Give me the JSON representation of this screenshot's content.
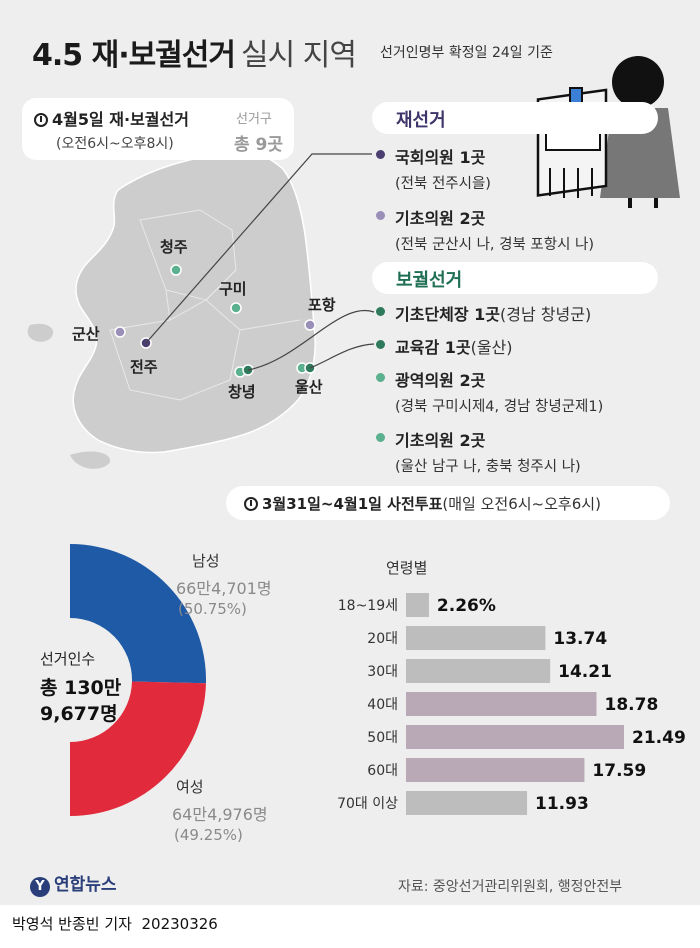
{
  "title": {
    "main": "4.5 재·보궐선거",
    "sub": "실시 지역"
  },
  "basis_note": "선거인명부 확정일 24일 기준",
  "election_day": {
    "date_label": "4월5일 재·보궐선거",
    "hours": "(오전6시~오후8시)",
    "districts_label": "선거구",
    "districts_value": "총 9곳"
  },
  "cities": [
    {
      "name": "청주",
      "kind": "by_election"
    },
    {
      "name": "구미",
      "kind": "by_election"
    },
    {
      "name": "포항",
      "kind": "re_election"
    },
    {
      "name": "군산",
      "kind": "re_election"
    },
    {
      "name": "전주",
      "kind": "re_election_main"
    },
    {
      "name": "창녕",
      "kind": "by_election"
    },
    {
      "name": "울산",
      "kind": "by_election"
    }
  ],
  "re_election": {
    "heading": "재선거",
    "items": [
      {
        "title": "국회의원 1곳",
        "detail": "(전북 전주시을)"
      },
      {
        "title": "기초의원 2곳",
        "detail": "(전북 군산시 나, 경북 포항시 나)"
      }
    ]
  },
  "by_election": {
    "heading": "보궐선거",
    "items": [
      {
        "title": "기초단체장 1곳",
        "extra": "(경남 창녕군)",
        "detail": ""
      },
      {
        "title": "교육감 1곳",
        "extra": "(울산)",
        "detail": ""
      },
      {
        "title": "광역의원 2곳",
        "extra": "",
        "detail": "(경북 구미시제4, 경남 창녕군제1)"
      },
      {
        "title": "기초의원 2곳",
        "extra": "",
        "detail": "(울산 남구 나, 충북 청주시 나)"
      }
    ]
  },
  "early_voting": {
    "dates": "3월31일~4월1일 사전투표",
    "hours": "(매일 오전6시~오후6시)"
  },
  "colors": {
    "male": "#1f5aa6",
    "female": "#e12b3c",
    "re_dot": "#4b3f72",
    "re_dot_light": "#9a8fb8",
    "by_dot": "#2f7a5b",
    "by_dot_light": "#5bb08f",
    "map": "#cdcdcd",
    "bar_light": "#bdbdbd",
    "bar_dark": "#b9a9b6"
  },
  "chart_data": [
    {
      "type": "pie",
      "title": "선거인수",
      "total_label": "총 130만",
      "total_label2": "9,677명",
      "slices": [
        {
          "name": "남성",
          "value_label": "66만4,701명",
          "pct_label": "(50.75%)",
          "value": 664701,
          "percent": 50.75
        },
        {
          "name": "여성",
          "value_label": "64만4,976명",
          "pct_label": "(49.25%)",
          "value": 644976,
          "percent": 49.25
        }
      ]
    },
    {
      "type": "bar",
      "title": "연령별",
      "orientation": "horizontal",
      "categories": [
        "18~19세",
        "20대",
        "30대",
        "40대",
        "50대",
        "60대",
        "70대 이상"
      ],
      "values": [
        2.26,
        13.74,
        14.21,
        18.78,
        21.49,
        17.59,
        11.93
      ],
      "labels": [
        "2.26%",
        "13.74",
        "14.21",
        "18.78",
        "21.49",
        "17.59",
        "11.93"
      ],
      "xlim": [
        0,
        21.49
      ],
      "highlighted": [
        false,
        false,
        false,
        true,
        true,
        true,
        false
      ]
    }
  ],
  "footer": {
    "logo": "연합뉴스",
    "source": "자료: 중앙선거관리위원회, 행정안전부",
    "credit": "박영석 반종빈 기자",
    "date": "20230326"
  }
}
